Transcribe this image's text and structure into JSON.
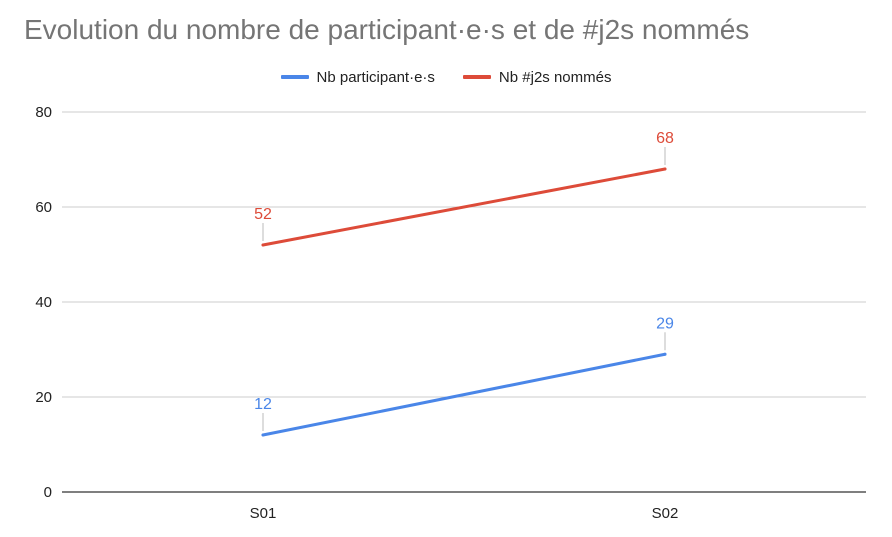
{
  "chart_data": {
    "type": "line",
    "title": "Evolution du nombre de participant·e·s et de #j2s nommés",
    "xlabel": "",
    "ylabel": "",
    "categories": [
      "S01",
      "S02"
    ],
    "ylim": [
      0,
      80
    ],
    "yticks": [
      0,
      20,
      40,
      60,
      80
    ],
    "grid": true,
    "legend_position": "top-center",
    "series": [
      {
        "name": "Nb participant·e·s",
        "values": [
          12,
          29
        ],
        "color": "#4a86e8"
      },
      {
        "name": "Nb #j2s nommés",
        "values": [
          52,
          68
        ],
        "color": "#dd4b39"
      }
    ],
    "data_labels": true
  }
}
